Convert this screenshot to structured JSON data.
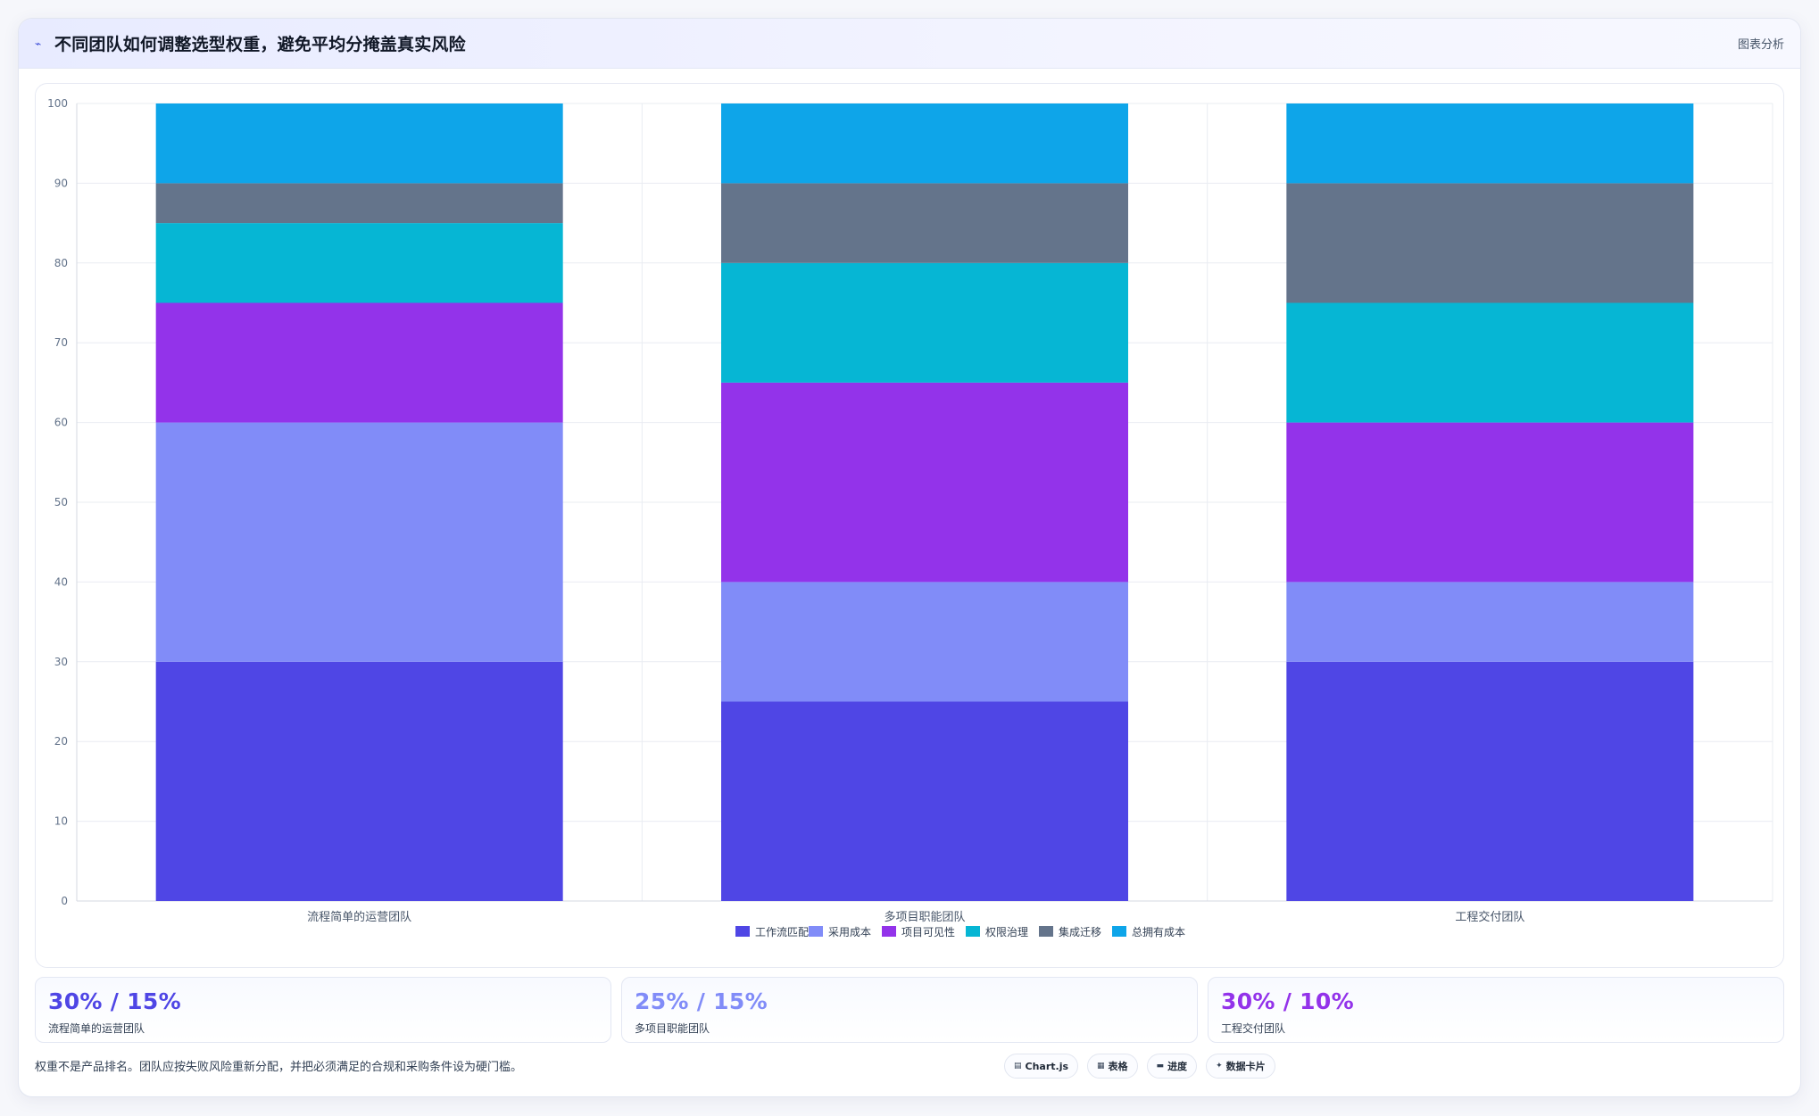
{
  "header": {
    "icon": "chart-line-icon",
    "title": "不同团队如何调整选型权重，避免平均分掩盖真实风险",
    "tag": "图表分析"
  },
  "chart_data": {
    "type": "bar",
    "stacked": true,
    "categories": [
      "流程简单的运营团队",
      "多项目职能团队",
      "工程交付团队"
    ],
    "series": [
      {
        "name": "工作流匹配",
        "color": "#4f46e5",
        "values": [
          30,
          25,
          30
        ]
      },
      {
        "name": "采用成本",
        "color": "#818cf8",
        "values": [
          30,
          15,
          10
        ]
      },
      {
        "name": "项目可见性",
        "color": "#9333ea",
        "values": [
          15,
          25,
          20
        ]
      },
      {
        "name": "权限治理",
        "color": "#06b6d4",
        "values": [
          10,
          15,
          15
        ]
      },
      {
        "name": "集成迁移",
        "color": "#64748b",
        "values": [
          5,
          10,
          15
        ]
      },
      {
        "name": "总拥有成本",
        "color": "#0ea5e9",
        "values": [
          10,
          10,
          10
        ]
      }
    ],
    "ylim": [
      0,
      100
    ],
    "yticks": [
      0,
      10,
      20,
      30,
      40,
      50,
      60,
      70,
      80,
      90,
      100
    ],
    "grid": true,
    "legend": "bottom"
  },
  "stats": [
    {
      "value": "30% / 15%",
      "label": "流程简单的运营团队",
      "color": "#4f46e5"
    },
    {
      "value": "25% / 15%",
      "label": "多项目职能团队",
      "color": "#818cf8"
    },
    {
      "value": "30% / 10%",
      "label": "工程交付团队",
      "color": "#9333ea"
    }
  ],
  "footer": {
    "note": "权重不是产品排名。团队应按失败风险重新分配，并把必须满足的合规和采购条件设为硬门槛。",
    "pills": [
      {
        "icon": "chart-icon",
        "glyph": "▤",
        "label": "Chart.js"
      },
      {
        "icon": "table-icon",
        "glyph": "▦",
        "label": "表格"
      },
      {
        "icon": "progress-icon",
        "glyph": "▬",
        "label": "进度"
      },
      {
        "icon": "sparkle-icon",
        "glyph": "✦",
        "label": "数据卡片"
      }
    ]
  }
}
